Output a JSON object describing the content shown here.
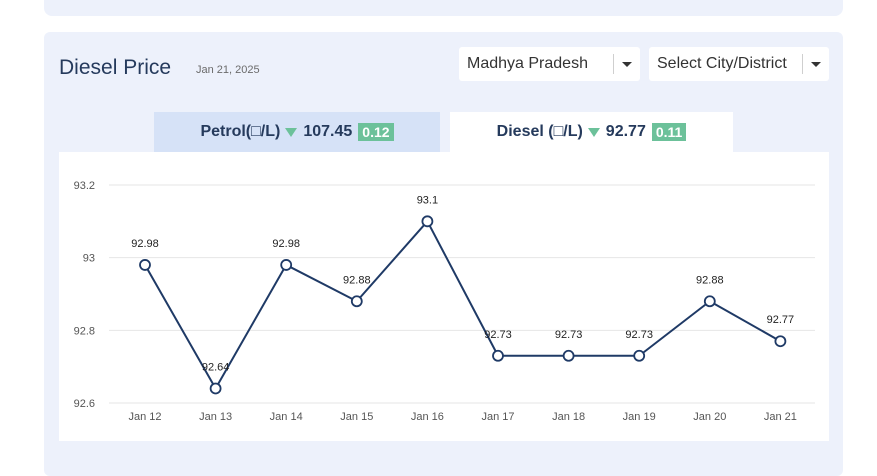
{
  "header": {
    "title": "Diesel Price",
    "date": "Jan 21, 2025"
  },
  "filters": {
    "state": "Madhya Pradesh",
    "city": "Select City/District"
  },
  "tabs": {
    "petrol": {
      "label": "Petrol(□/L)",
      "price": "107.45",
      "change": "0.12"
    },
    "diesel": {
      "label": "Diesel (□/L)",
      "price": "92.77",
      "change": "0.11"
    }
  },
  "colors": {
    "line": "#1f3a66",
    "change_badge": "#6cc19a",
    "panel": "#edf1fb"
  },
  "chart_data": {
    "type": "line",
    "categories": [
      "Jan 12",
      "Jan 13",
      "Jan 14",
      "Jan 15",
      "Jan 16",
      "Jan 17",
      "Jan 18",
      "Jan 19",
      "Jan 20",
      "Jan 21"
    ],
    "values": [
      92.98,
      92.64,
      92.98,
      92.88,
      93.1,
      92.73,
      92.73,
      92.73,
      92.88,
      92.77
    ],
    "data_labels": [
      "92.98",
      "92.64",
      "92.98",
      "92.88",
      "93.1",
      "92.73",
      "92.73",
      "92.73",
      "92.88",
      "92.77"
    ],
    "y_ticks": [
      "92.6",
      "92.8",
      "93",
      "93.2"
    ],
    "ylim": [
      92.6,
      93.2
    ],
    "grid": true,
    "title": "",
    "xlabel": "",
    "ylabel": ""
  }
}
